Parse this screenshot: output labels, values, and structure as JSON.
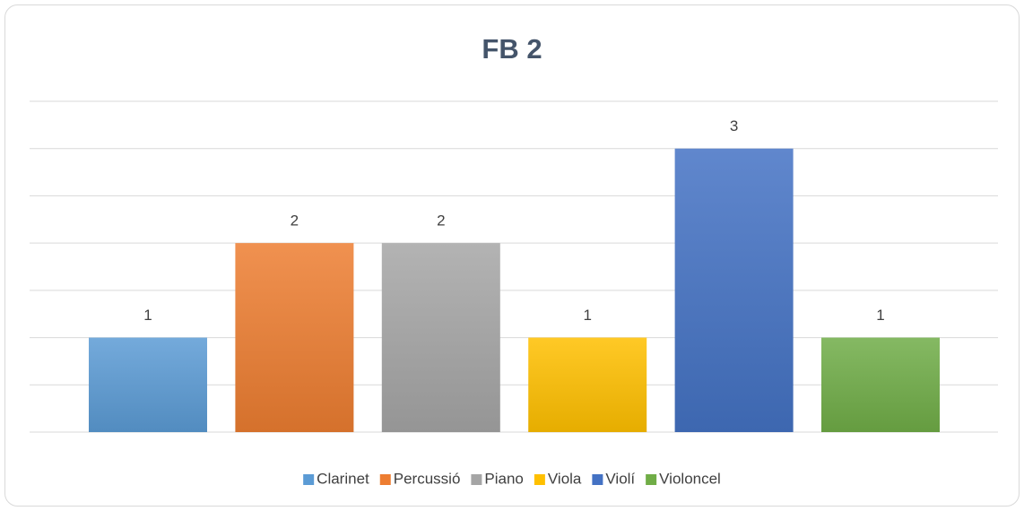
{
  "chart_data": {
    "type": "bar",
    "title": "FB 2",
    "categories": [
      "Clarinet",
      "Percussió",
      "Piano",
      "Viola",
      "Violí",
      "Violoncel"
    ],
    "values": [
      1,
      2,
      2,
      1,
      3,
      1
    ],
    "colors": [
      "#5b9bd5",
      "#ed7d31",
      "#a5a5a5",
      "#ffc000",
      "#4472c4",
      "#70ad47"
    ],
    "ylim": [
      0,
      3.5
    ],
    "yticks": [
      0,
      0.5,
      1,
      1.5,
      2,
      2.5,
      3,
      3.5
    ],
    "grid": true,
    "legend": "bottom"
  }
}
